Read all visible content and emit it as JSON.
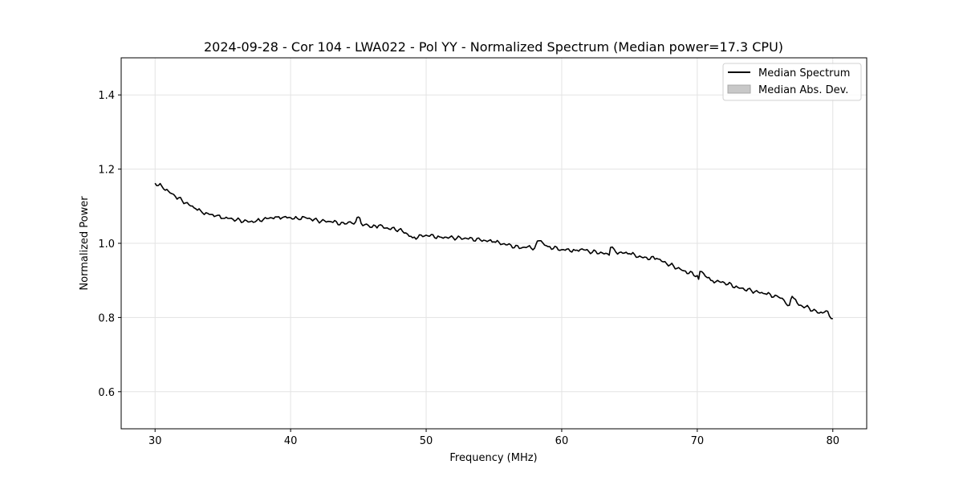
{
  "chart_data": {
    "type": "line",
    "title": "2024-09-28 - Cor 104 - LWA022 - Pol YY - Normalized Spectrum (Median power=17.3 CPU)",
    "xlabel": "Frequency (MHz)",
    "ylabel": "Normalized Power",
    "xlim": [
      27.5,
      82.5
    ],
    "ylim": [
      0.5,
      1.5
    ],
    "xticks": [
      30,
      40,
      50,
      60,
      70,
      80
    ],
    "yticks": [
      0.6,
      0.8,
      1.0,
      1.2,
      1.4
    ],
    "xtick_labels": [
      "30",
      "40",
      "50",
      "60",
      "70",
      "80"
    ],
    "ytick_labels": [
      "0.6",
      "0.8",
      "1.0",
      "1.2",
      "1.4"
    ],
    "grid": true,
    "legend_position": "top-right",
    "legend": [
      {
        "label": "Median Spectrum",
        "kind": "line",
        "color": "#000000"
      },
      {
        "label": "Median Abs. Dev.",
        "kind": "patch",
        "color": "#c8c8c8"
      }
    ],
    "series": [
      {
        "name": "Median Spectrum",
        "color": "#000000",
        "x": [
          30,
          30.5,
          31,
          31.5,
          32,
          32.5,
          33,
          33.5,
          34,
          34.5,
          35,
          35.5,
          36,
          37,
          37.5,
          38,
          38.5,
          39,
          39.5,
          40,
          40.5,
          41,
          41.5,
          42,
          43,
          44,
          44.8,
          45,
          45.2,
          46,
          46.5,
          47,
          48,
          48.5,
          49,
          50,
          51,
          52,
          53,
          54,
          55,
          56,
          57,
          57.5,
          58,
          58.2,
          59,
          60,
          61,
          61.5,
          62,
          63,
          63.5,
          63.6,
          64,
          65,
          66,
          67,
          67.5,
          68,
          69,
          70,
          70.1,
          70.2,
          71,
          72,
          73,
          74,
          75,
          76,
          76.8,
          77,
          77.5,
          78,
          79,
          79.5,
          80
        ],
        "y": [
          1.162,
          1.154,
          1.14,
          1.126,
          1.115,
          1.104,
          1.093,
          1.082,
          1.078,
          1.074,
          1.067,
          1.067,
          1.063,
          1.058,
          1.061,
          1.065,
          1.069,
          1.071,
          1.071,
          1.069,
          1.067,
          1.071,
          1.065,
          1.061,
          1.058,
          1.052,
          1.058,
          1.071,
          1.054,
          1.043,
          1.048,
          1.041,
          1.037,
          1.028,
          1.015,
          1.022,
          1.017,
          1.015,
          1.013,
          1.009,
          1.004,
          0.996,
          0.987,
          0.991,
          0.987,
          1.006,
          0.991,
          0.983,
          0.981,
          0.985,
          0.978,
          0.974,
          0.968,
          0.989,
          0.976,
          0.972,
          0.961,
          0.959,
          0.95,
          0.942,
          0.926,
          0.913,
          0.903,
          0.924,
          0.9,
          0.894,
          0.881,
          0.872,
          0.864,
          0.855,
          0.833,
          0.857,
          0.833,
          0.829,
          0.812,
          0.818,
          0.797
        ]
      }
    ]
  }
}
